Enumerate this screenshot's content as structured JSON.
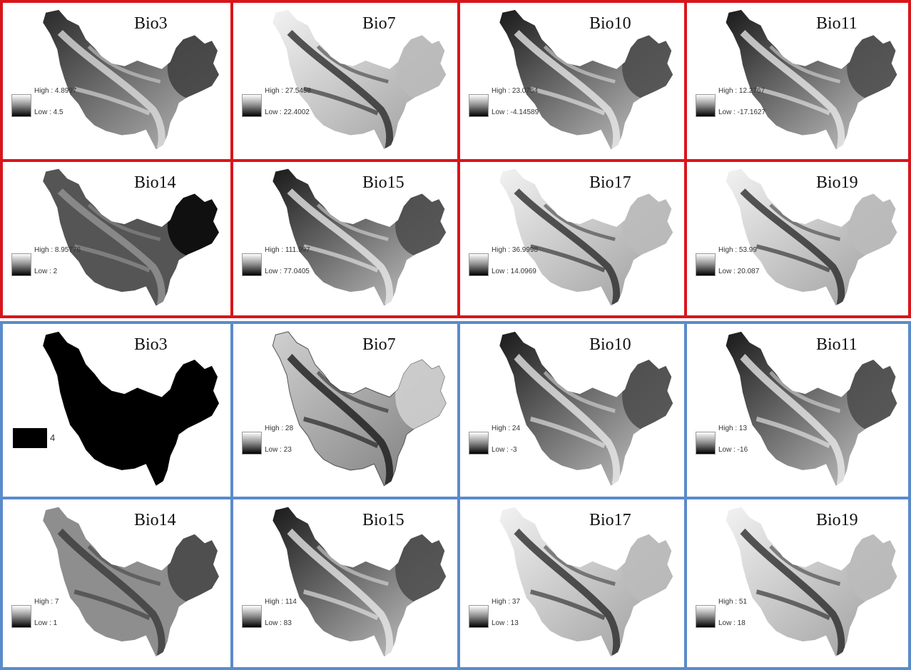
{
  "colors": {
    "red_group_border": "#d8151b",
    "blue_group_border": "#5a8bcb"
  },
  "red_group": [
    {
      "title": "Bio3",
      "high": "High : 4.8997",
      "low": "Low : 4.5",
      "style": "patchy"
    },
    {
      "title": "Bio7",
      "high": "High : 27.5458",
      "low": "Low : 22.4002",
      "style": "light"
    },
    {
      "title": "Bio10",
      "high": "High : 23.0764",
      "low": "Low : -4.14589",
      "style": "dark"
    },
    {
      "title": "Bio11",
      "high": "High : 12.2767",
      "low": "Low : -17.1627",
      "style": "dark"
    },
    {
      "title": "Bio14",
      "high": "High : 8.95776",
      "low": "Low : 2",
      "style": "flatdark"
    },
    {
      "title": "Bio15",
      "high": "High : 111.997",
      "low": "Low : 77.0405",
      "style": "dark"
    },
    {
      "title": "Bio17",
      "high": "High : 36.9998",
      "low": "Low : 14.0969",
      "style": "light"
    },
    {
      "title": "Bio19",
      "high": "High : 53.99",
      "low": "Low : 20.087",
      "style": "light"
    }
  ],
  "blue_group": [
    {
      "title": "Bio3",
      "single": "4",
      "style": "black"
    },
    {
      "title": "Bio7",
      "high": "High : 28",
      "low": "Low : 23",
      "style": "classed"
    },
    {
      "title": "Bio10",
      "high": "High : 24",
      "low": "Low : -3",
      "style": "dark"
    },
    {
      "title": "Bio11",
      "high": "High : 13",
      "low": "Low : -16",
      "style": "dark"
    },
    {
      "title": "Bio14",
      "high": "High : 7",
      "low": "Low : 1",
      "style": "flatgrey"
    },
    {
      "title": "Bio15",
      "high": "High : 114",
      "low": "Low : 83",
      "style": "dark"
    },
    {
      "title": "Bio17",
      "high": "High : 37",
      "low": "Low : 13",
      "style": "light"
    },
    {
      "title": "Bio19",
      "high": "High : 51",
      "low": "Low : 18",
      "style": "light"
    }
  ]
}
